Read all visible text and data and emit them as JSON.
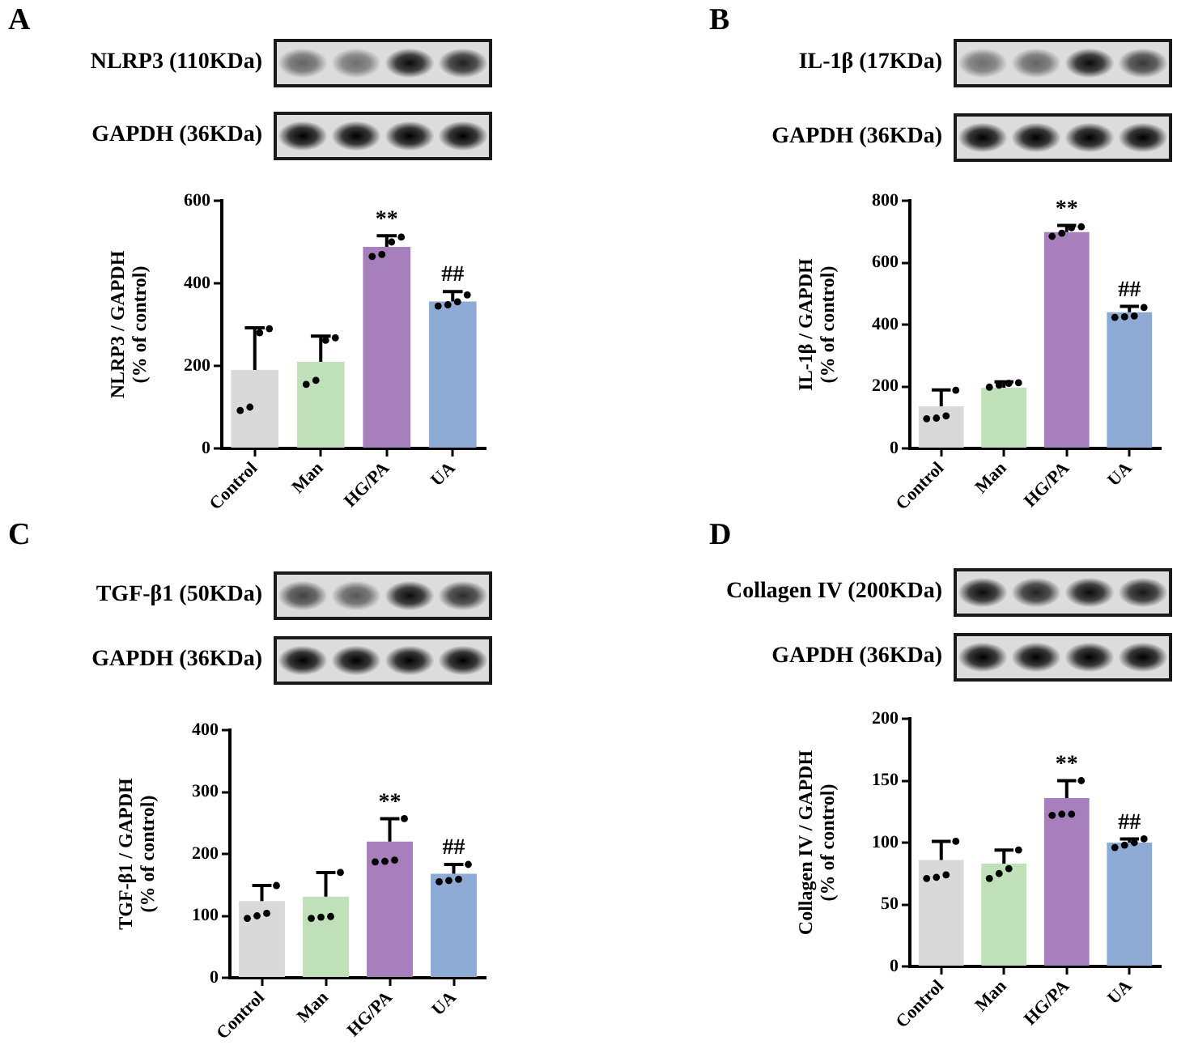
{
  "chart_data": [
    {
      "type": "bar",
      "title": "A",
      "ylabel": "NLRP3 / GAPDH\n(% of control)",
      "categories": [
        "Control",
        "Man",
        "HG/PA",
        "UA"
      ],
      "series": [
        {
          "values": [
            190,
            210,
            488,
            356
          ],
          "colors": [
            "#d9d9d9",
            "#bfe0b8",
            "#a87fbd",
            "#8eabd6"
          ],
          "errors": [
            [
              190,
              292
            ],
            [
              210,
              272
            ],
            [
              488,
              515
            ],
            [
              356,
              380
            ]
          ]
        },
        {
          "type": "scatter",
          "x": [
            "Control",
            "Control",
            "Control",
            "Control",
            "Man",
            "Man",
            "Man",
            "Man",
            "HG/PA",
            "HG/PA",
            "HG/PA",
            "HG/PA",
            "UA",
            "UA",
            "UA",
            "UA"
          ],
          "values": [
            92,
            100,
            280,
            290,
            155,
            165,
            262,
            268,
            465,
            470,
            500,
            512,
            345,
            348,
            355,
            372
          ],
          "color": "#000000",
          "marker": "circle"
        }
      ],
      "ylim": [
        0,
        600
      ],
      "yticks": [
        0,
        200,
        400,
        600
      ],
      "annotations": [
        "NLRP3 (110KDa)",
        "GAPDH (36KDa)",
        {
          "text": "**",
          "x": "HG/PA",
          "y": 515
        },
        {
          "text": "##",
          "x": "UA",
          "y": 380
        }
      ]
    },
    {
      "type": "bar",
      "title": "B",
      "ylabel": "IL-1β / GAPDH\n(% of control)",
      "categories": [
        "Control",
        "Man",
        "HG/PA",
        "UA"
      ],
      "series": [
        {
          "values": [
            136,
            196,
            699,
            440
          ],
          "colors": [
            "#d9d9d9",
            "#bfe0b8",
            "#a87fbd",
            "#8eabd6"
          ],
          "errors": [
            [
              136,
              189
            ],
            [
              196,
              215
            ],
            [
              699,
              720
            ],
            [
              440,
              459
            ]
          ]
        },
        {
          "type": "scatter",
          "x": [
            "Control",
            "Control",
            "Control",
            "Control",
            "Man",
            "Man",
            "Man",
            "Man",
            "HG/PA",
            "HG/PA",
            "HG/PA",
            "HG/PA",
            "UA",
            "UA",
            "UA",
            "UA"
          ],
          "values": [
            96,
            98,
            105,
            188,
            198,
            204,
            210,
            212,
            685,
            695,
            713,
            716,
            423,
            425,
            428,
            455
          ],
          "color": "#000000",
          "marker": "circle"
        }
      ],
      "ylim": [
        0,
        800
      ],
      "yticks": [
        0,
        200,
        400,
        600,
        800
      ],
      "annotations": [
        "IL-1β (17KDa)",
        "GAPDH (36KDa)",
        {
          "text": "**",
          "x": "HG/PA",
          "y": 720
        },
        {
          "text": "##",
          "x": "UA",
          "y": 459
        }
      ]
    },
    {
      "type": "bar",
      "title": "C",
      "ylabel": "TGF-β1 / GAPDH\n(% of control)",
      "categories": [
        "Control",
        "Man",
        "HG/PA",
        "UA"
      ],
      "series": [
        {
          "values": [
            124,
            131,
            220,
            168
          ],
          "colors": [
            "#d9d9d9",
            "#bfe0b8",
            "#a87fbd",
            "#8eabd6"
          ],
          "errors": [
            [
              124,
              149
            ],
            [
              131,
              170
            ],
            [
              220,
              257
            ],
            [
              168,
              183
            ]
          ]
        },
        {
          "type": "scatter",
          "x": [
            "Control",
            "Control",
            "Control",
            "Control",
            "Man",
            "Man",
            "Man",
            "Man",
            "HG/PA",
            "HG/PA",
            "HG/PA",
            "HG/PA",
            "UA",
            "UA",
            "UA",
            "UA"
          ],
          "values": [
            96,
            100,
            104,
            149,
            96,
            98,
            99,
            170,
            187,
            188,
            190,
            257,
            155,
            157,
            159,
            183
          ],
          "color": "#000000",
          "marker": "circle"
        }
      ],
      "ylim": [
        0,
        400
      ],
      "yticks": [
        0,
        100,
        200,
        300,
        400
      ],
      "annotations": [
        "TGF-β1 (50KDa)",
        "GAPDH (36KDa)",
        {
          "text": "**",
          "x": "HG/PA",
          "y": 257
        },
        {
          "text": "##",
          "x": "UA",
          "y": 183
        }
      ]
    },
    {
      "type": "bar",
      "title": "D",
      "ylabel": "Collagen IV / GAPDH\n(% of control)",
      "categories": [
        "Control",
        "Man",
        "HG/PA",
        "UA"
      ],
      "series": [
        {
          "values": [
            86,
            83,
            136,
            100
          ],
          "colors": [
            "#d9d9d9",
            "#bfe0b8",
            "#a87fbd",
            "#8eabd6"
          ],
          "errors": [
            [
              86,
              101
            ],
            [
              83,
              94
            ],
            [
              136,
              150
            ],
            [
              100,
              103
            ]
          ]
        },
        {
          "type": "scatter",
          "x": [
            "Control",
            "Control",
            "Control",
            "Control",
            "Man",
            "Man",
            "Man",
            "Man",
            "HG/PA",
            "HG/PA",
            "HG/PA",
            "HG/PA",
            "UA",
            "UA",
            "UA",
            "UA"
          ],
          "values": [
            71,
            72,
            74,
            101,
            71,
            75,
            79,
            94,
            122,
            123,
            123,
            150,
            96,
            98,
            100,
            103
          ],
          "color": "#000000",
          "marker": "circle"
        }
      ],
      "ylim": [
        0,
        200
      ],
      "yticks": [
        0,
        50,
        100,
        150,
        200
      ],
      "annotations": [
        "Collagen IV (200KDa)",
        "GAPDH (36KDa)",
        {
          "text": "**",
          "x": "HG/PA",
          "y": 150
        },
        {
          "text": "##",
          "x": "UA",
          "y": 103
        }
      ]
    }
  ]
}
